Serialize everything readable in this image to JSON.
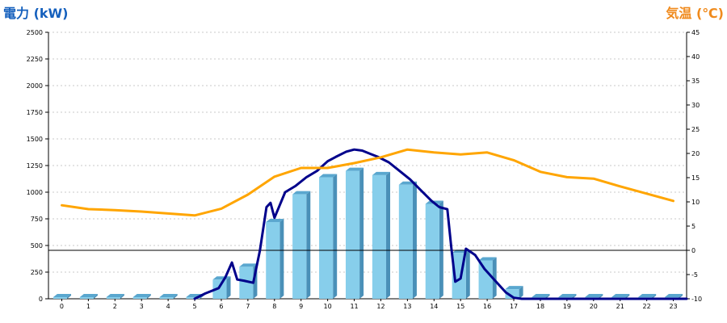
{
  "chart_data": {
    "type": "bar",
    "left_axis": {
      "title": "電力 (kW)",
      "min": 0,
      "max": 2500,
      "step": 250,
      "color": "#1560bd"
    },
    "right_axis": {
      "title": "気温 (℃)",
      "min": -10,
      "max": 45,
      "step": 5,
      "color": "#f08a1c"
    },
    "categories": [
      "0",
      "1",
      "2",
      "3",
      "4",
      "5",
      "6",
      "7",
      "8",
      "9",
      "10",
      "11",
      "12",
      "13",
      "14",
      "15",
      "16",
      "17",
      "18",
      "19",
      "20",
      "21",
      "22",
      "23"
    ],
    "grid": true,
    "series": [
      {
        "kind": "bar",
        "axis": "left",
        "color": "#87ceeb",
        "values": [
          0,
          0,
          0,
          0,
          0,
          10,
          180,
          300,
          720,
          980,
          1140,
          1200,
          1160,
          1070,
          890,
          430,
          360,
          90,
          0,
          0,
          0,
          0,
          0,
          0
        ]
      },
      {
        "kind": "line",
        "axis": "left",
        "color": "#00008b",
        "x": [
          5,
          5.4,
          5.9,
          6.15,
          6.4,
          6.6,
          6.85,
          7.2,
          7.45,
          7.7,
          7.85,
          8.0,
          8.4,
          8.8,
          9.2,
          9.6,
          10,
          10.3,
          10.7,
          11.0,
          11.3,
          11.6,
          11.9,
          12.3,
          12.7,
          13.1,
          13.5,
          13.9,
          14.2,
          14.5,
          14.65,
          14.8,
          15.0,
          15.2,
          15.55,
          15.9,
          16.3,
          16.7,
          17.0,
          17.3,
          17.6,
          23.5
        ],
        "values": [
          0,
          50,
          100,
          200,
          340,
          180,
          170,
          150,
          450,
          860,
          900,
          760,
          1000,
          1060,
          1140,
          1200,
          1290,
          1330,
          1380,
          1400,
          1390,
          1360,
          1330,
          1280,
          1200,
          1120,
          1020,
          920,
          860,
          840,
          480,
          160,
          190,
          470,
          410,
          280,
          170,
          60,
          10,
          0,
          0,
          0
        ]
      },
      {
        "kind": "line",
        "axis": "right",
        "color": "#ffa500",
        "x": [
          0,
          1,
          2,
          3,
          4,
          5,
          6,
          7,
          8,
          9,
          10,
          11,
          12,
          13,
          14,
          15,
          16,
          17,
          18,
          19,
          20,
          21,
          22,
          23
        ],
        "values": [
          9.3,
          8.5,
          8.3,
          8.0,
          7.6,
          7.2,
          8.6,
          11.5,
          15.2,
          17.0,
          17.0,
          18.0,
          19.2,
          20.8,
          20.2,
          19.8,
          20.2,
          18.6,
          16.2,
          15.1,
          14.8,
          13.2,
          11.7,
          10.2
        ]
      }
    ],
    "reference_line": {
      "axis": "right",
      "value": 0,
      "color": "#000000"
    }
  }
}
